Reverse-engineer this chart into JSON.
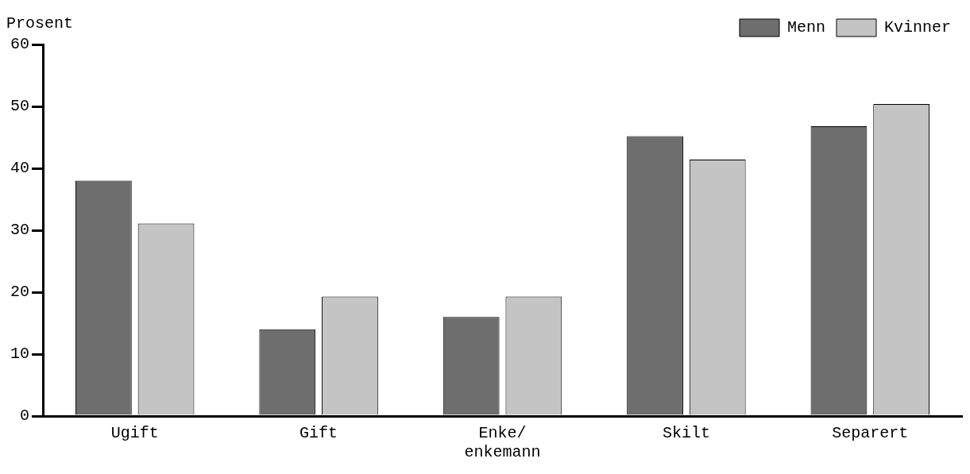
{
  "chart_data": {
    "type": "bar",
    "ylabel": "Prosent",
    "categories": [
      "Ugift",
      "Gift",
      "Enke/ enkemann",
      "Skilt",
      "Separert"
    ],
    "series": [
      {
        "name": "Menn",
        "color": "#6e6e6e",
        "values": [
          38,
          14,
          16,
          45.2,
          46.8
        ]
      },
      {
        "name": "Kvinner",
        "color": "#c4c4c4",
        "values": [
          31.1,
          19.3,
          19.3,
          41.4,
          50.4
        ]
      }
    ],
    "ylim": [
      0,
      60
    ],
    "yticks": [
      0,
      10,
      20,
      30,
      40,
      50,
      60
    ],
    "grid": false,
    "legend": "top right"
  }
}
